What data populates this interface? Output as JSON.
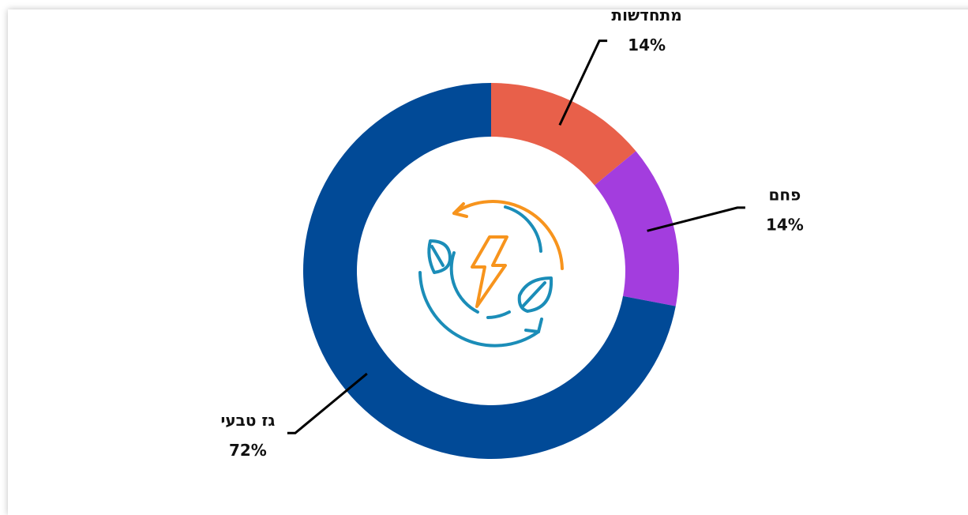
{
  "chart_data": {
    "type": "donut",
    "categories": [
      "מתחדשות",
      "פחם",
      "גז טבעי"
    ],
    "values": [
      14,
      14,
      72
    ],
    "value_labels": [
      "14%",
      "14%",
      "72%"
    ],
    "colors": [
      "#E8604A",
      "#A33DDE",
      "#014A97"
    ]
  }
}
